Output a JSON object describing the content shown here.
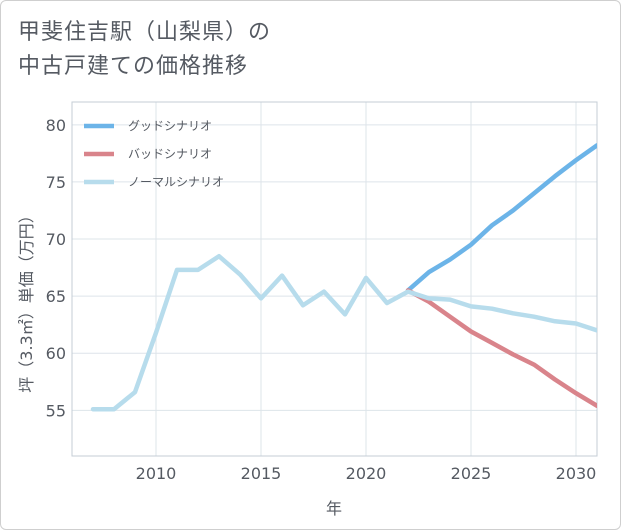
{
  "chart_data": {
    "type": "line",
    "title_line1": "甲斐住吉駅（山梨県）の",
    "title_line2": "中古戸建ての価格推移",
    "xlabel": "年",
    "ylabel": "坪（3.3㎡）単価（万円）",
    "xlim": [
      2006,
      2031
    ],
    "ylim": [
      51,
      82
    ],
    "xticks": [
      2010,
      2015,
      2020,
      2025,
      2030
    ],
    "yticks": [
      55,
      60,
      65,
      70,
      75,
      80
    ],
    "grid": true,
    "legend_position": "top-left",
    "series": [
      {
        "name": "グッドシナリオ",
        "color": "#6cb4e8",
        "x": [
          2022,
          2023,
          2024,
          2025,
          2026,
          2027,
          2028,
          2029,
          2030,
          2031
        ],
        "y": [
          65.5,
          67.1,
          68.2,
          69.5,
          71.2,
          72.5,
          74.0,
          75.5,
          76.9,
          78.2
        ]
      },
      {
        "name": "バッドシナリオ",
        "color": "#d9848b",
        "x": [
          2022,
          2023,
          2024,
          2025,
          2026,
          2027,
          2028,
          2029,
          2030,
          2031
        ],
        "y": [
          65.5,
          64.5,
          63.2,
          61.9,
          60.9,
          59.9,
          59.0,
          57.7,
          56.5,
          55.4
        ]
      },
      {
        "name": "ノーマルシナリオ",
        "color": "#b7dcec",
        "x": [
          2007,
          2008,
          2009,
          2010,
          2011,
          2012,
          2013,
          2014,
          2015,
          2016,
          2017,
          2018,
          2019,
          2020,
          2021,
          2022,
          2023,
          2024,
          2025,
          2026,
          2027,
          2028,
          2029,
          2030,
          2031
        ],
        "y": [
          55.1,
          55.1,
          56.6,
          61.8,
          67.3,
          67.3,
          68.5,
          66.9,
          64.8,
          66.8,
          64.2,
          65.4,
          63.4,
          66.6,
          64.4,
          65.4,
          64.8,
          64.7,
          64.1,
          63.9,
          63.5,
          63.2,
          62.8,
          62.6,
          62.0
        ]
      }
    ]
  }
}
